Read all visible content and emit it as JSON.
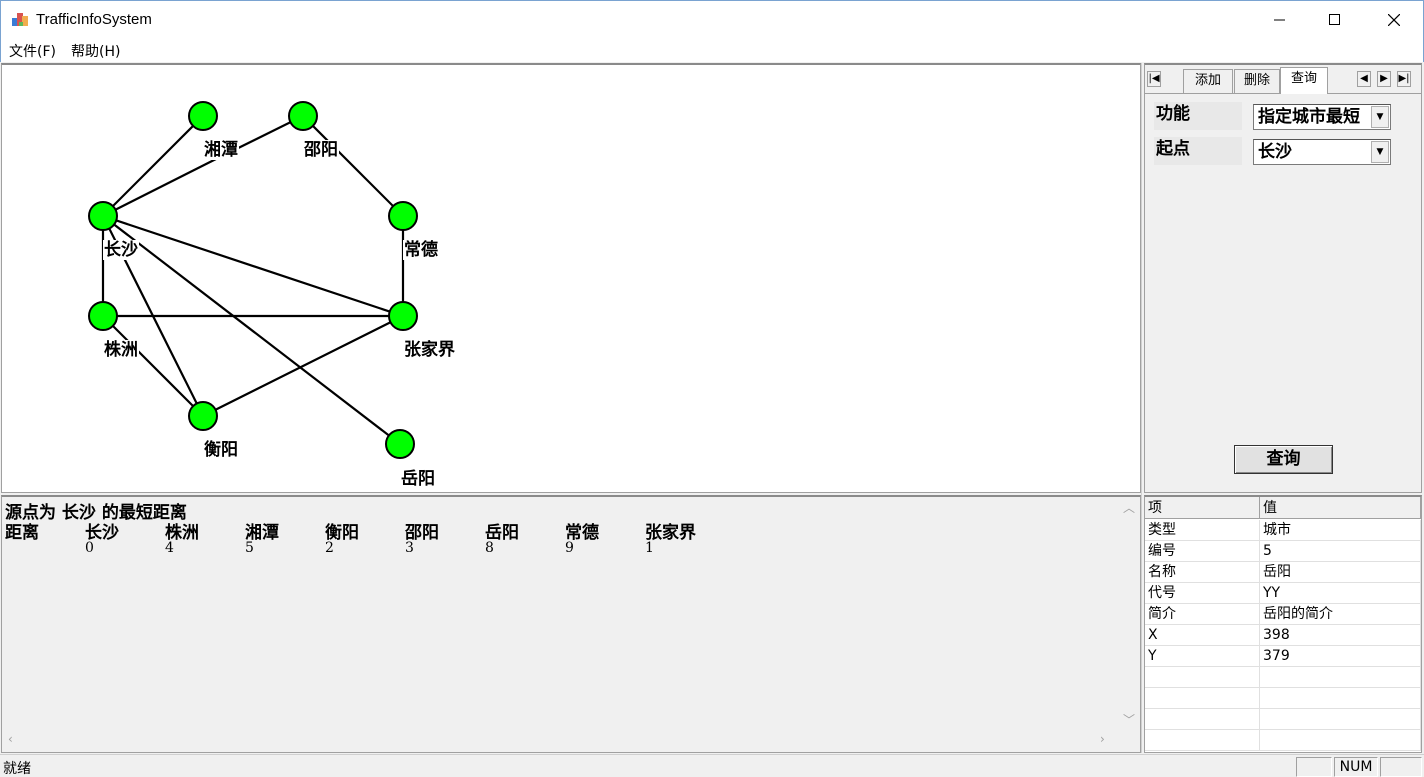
{
  "window": {
    "title": "TrafficInfoSystem"
  },
  "menu": {
    "file": "文件(F)",
    "help": "帮助(H)"
  },
  "graph": {
    "node_color": "#00ff00",
    "cities": {
      "xiangtan": "湘潭",
      "shaoyang": "邵阳",
      "changsha": "长沙",
      "changde": "常德",
      "zhuzhou": "株洲",
      "zhangjiajie": "张家界",
      "hengyang": "衡阳",
      "yueyang": "岳阳"
    }
  },
  "tabs": {
    "add": "添加",
    "delete": "删除",
    "query": "查询"
  },
  "query_form": {
    "function_label": "功能",
    "function_value": "指定城市最短",
    "start_label": "起点",
    "start_value": "长沙",
    "button": "查询"
  },
  "output": {
    "heading": "源点为 长沙 的最短距离",
    "row_label": "距离",
    "columns": [
      "长沙",
      "株洲",
      "湘潭",
      "衡阳",
      "邵阳",
      "岳阳",
      "常德",
      "张家界"
    ],
    "values": [
      "0",
      "4",
      "5",
      "2",
      "3",
      "8",
      "9",
      "1"
    ]
  },
  "properties": {
    "header_item": "项",
    "header_value": "值",
    "rows": [
      {
        "key": "类型",
        "value": "城市"
      },
      {
        "key": "编号",
        "value": "5"
      },
      {
        "key": "名称",
        "value": "岳阳"
      },
      {
        "key": "代号",
        "value": "YY"
      },
      {
        "key": "简介",
        "value": "岳阳的简介"
      },
      {
        "key": "X",
        "value": "398"
      },
      {
        "key": "Y",
        "value": "379"
      }
    ]
  },
  "status": {
    "text": "就绪",
    "num": "NUM"
  }
}
